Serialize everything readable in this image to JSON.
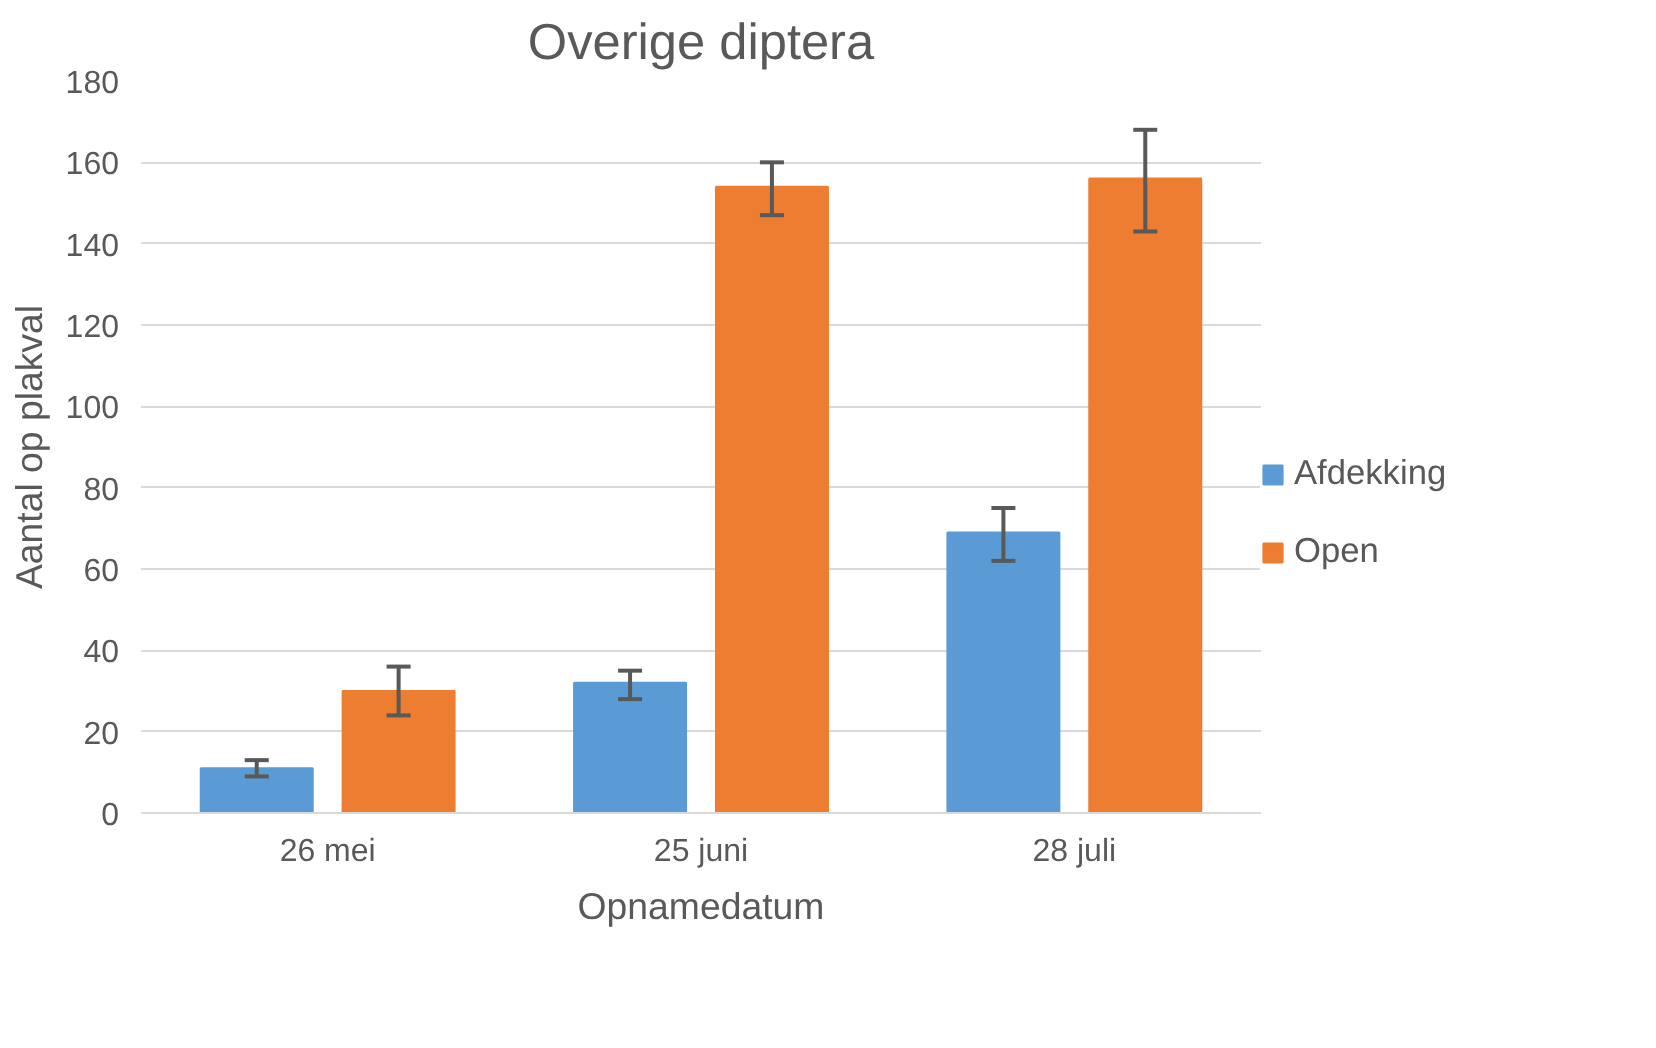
{
  "chart_data": {
    "type": "bar",
    "title": "Overige diptera",
    "xlabel": "Opnamedatum",
    "ylabel": "Aantal op plakval",
    "categories": [
      "26 mei",
      "25 juni",
      "28 juli"
    ],
    "series": [
      {
        "name": "Afdekking",
        "color": "#5b9bd5",
        "values": [
          11,
          32,
          69
        ],
        "errors": [
          [
            9,
            13
          ],
          [
            28,
            35
          ],
          [
            62,
            75
          ]
        ]
      },
      {
        "name": "Open",
        "color": "#ed7d31",
        "values": [
          30,
          154,
          156
        ],
        "errors": [
          [
            24,
            36
          ],
          [
            147,
            160
          ],
          [
            143,
            168
          ]
        ]
      }
    ],
    "ylim": [
      0,
      180
    ],
    "yticks": [
      0,
      20,
      40,
      60,
      80,
      100,
      120,
      140,
      160,
      180
    ],
    "grid": "y",
    "legend": "right"
  }
}
